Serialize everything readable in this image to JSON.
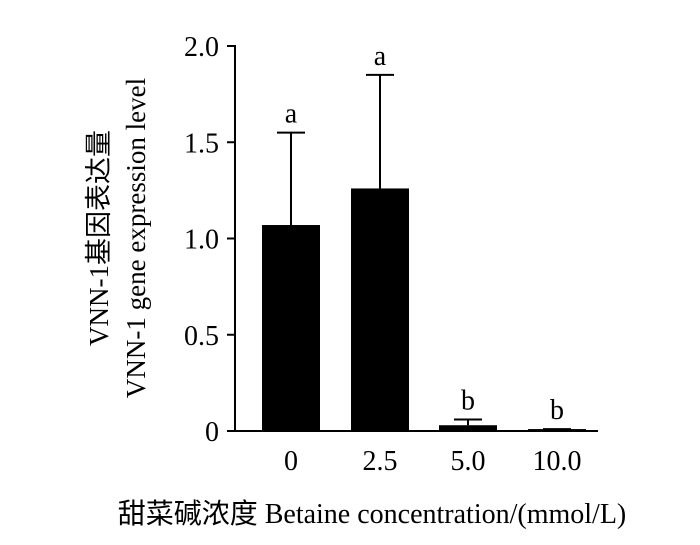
{
  "chart_data": {
    "type": "bar",
    "categories": [
      "0",
      "2.5",
      "5.0",
      "10.0"
    ],
    "values": [
      1.07,
      1.26,
      0.03,
      0.01
    ],
    "error_upper": [
      1.55,
      1.85,
      0.06,
      0.01
    ],
    "significance": [
      "a",
      "a",
      "b",
      "b"
    ],
    "ylim": [
      0,
      2.0
    ],
    "yticks": [
      0,
      0.5,
      1.0,
      1.5,
      2.0
    ],
    "ytick_labels": [
      "0",
      "0.5",
      "1.0",
      "1.5",
      "2.0"
    ],
    "ylabel_line1": "VNN-1基因表达量",
    "ylabel_line2": "VNN-1 gene expression level",
    "xlabel": "甜菜碱浓度  Betaine concentration/(mmol/L)",
    "bar_color": "#000000",
    "grid": false
  }
}
